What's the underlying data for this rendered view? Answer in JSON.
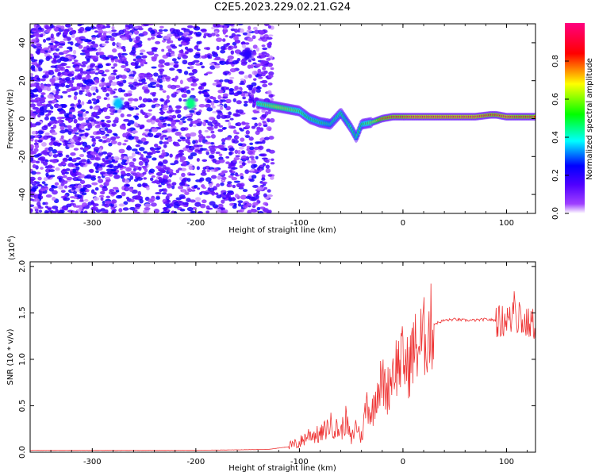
{
  "title": "C2E5.2023.229.02.21.G24",
  "chart_data": [
    {
      "type": "heatmap",
      "xlabel": "Height of straight line (km)",
      "ylabel": "Frequency (Hz)",
      "xlim": [
        -360,
        128
      ],
      "ylim": [
        -50,
        50
      ],
      "xticks": [
        -300,
        -200,
        -100,
        0,
        100
      ],
      "xtick_labels": [
        "-300",
        "-200",
        "-100",
        "0",
        "100"
      ],
      "yticks": [
        -40,
        -20,
        0,
        20,
        40
      ],
      "ytick_labels": [
        "-40",
        "-20",
        "0",
        "20",
        "40"
      ],
      "colorbar": {
        "label": "Normalized spectral amplitude",
        "range": [
          0,
          1
        ],
        "ticks": [
          0.0,
          0.2,
          0.4,
          0.6,
          0.8
        ],
        "tick_labels": [
          "0.0",
          "0.2",
          "0.4",
          "0.6",
          "0.8"
        ],
        "colors": [
          "#ffffff",
          "#7f00ff",
          "#0000ff",
          "#00ffff",
          "#00ff00",
          "#ffff00",
          "#ff0000",
          "#ff0080"
        ]
      },
      "ridge": {
        "x": [
          -140,
          -130,
          -120,
          -110,
          -100,
          -90,
          -80,
          -70,
          -60,
          -55,
          -50,
          -45,
          -40,
          -30,
          -20,
          -10,
          0,
          10,
          30,
          50,
          70,
          85,
          90,
          100,
          110,
          120,
          128
        ],
        "y": [
          8,
          7,
          6,
          5,
          4,
          0,
          -2,
          -3,
          3,
          -1,
          -5,
          -10,
          -3,
          -2,
          0,
          1,
          1,
          1,
          1,
          1,
          1,
          2,
          2,
          1,
          1,
          1,
          1
        ],
        "amp": [
          0.55,
          0.6,
          0.65,
          0.6,
          0.55,
          0.5,
          0.5,
          0.45,
          0.5,
          0.45,
          0.5,
          0.45,
          0.5,
          0.6,
          0.8,
          0.85,
          0.85,
          0.9,
          0.9,
          0.9,
          0.9,
          0.85,
          0.85,
          0.9,
          0.85,
          0.85,
          0.85
        ]
      },
      "hotspots": [
        {
          "x": -275,
          "y": 8,
          "amp": 0.35
        },
        {
          "x": -205,
          "y": 8,
          "amp": 0.45
        },
        {
          "x": -150,
          "y": 34,
          "amp": 0.2
        }
      ]
    },
    {
      "type": "line",
      "xlabel": "Height of straight line (km)",
      "ylabel": "SNR (10 * v/v)",
      "scale_label": "(x10",
      "scale_exp": "4",
      "scale_close": ")",
      "xlim": [
        -360,
        128
      ],
      "ylim": [
        0,
        2.05
      ],
      "xticks": [
        -300,
        -200,
        -100,
        0,
        100
      ],
      "xtick_labels": [
        "-300",
        "-200",
        "-100",
        "0",
        "100"
      ],
      "yticks": [
        0.0,
        0.5,
        1.0,
        1.5,
        2.0
      ],
      "ytick_labels": [
        "0.0",
        "0.5",
        "1.0",
        "1.5",
        "2.0"
      ],
      "series": [
        {
          "color": "#ee3333",
          "x": [
            -360,
            -300,
            -200,
            -130,
            -110,
            -100,
            -90,
            -80,
            -70,
            -60,
            -55,
            -50,
            -45,
            -40,
            -35,
            -30,
            -25,
            -20,
            -15,
            -10,
            -5,
            0,
            5,
            10,
            15,
            20,
            25,
            30,
            40,
            50,
            60,
            70,
            80,
            90,
            95,
            100,
            105,
            108,
            110,
            112,
            115,
            120,
            128
          ],
          "y": [
            0.02,
            0.02,
            0.02,
            0.03,
            0.06,
            0.1,
            0.2,
            0.18,
            0.3,
            0.22,
            0.35,
            0.12,
            0.3,
            0.15,
            0.55,
            0.4,
            0.7,
            0.75,
            0.65,
            0.9,
            0.95,
            1.0,
            0.9,
            1.1,
            1.15,
            1.22,
            1.3,
            1.38,
            1.42,
            1.43,
            1.42,
            1.42,
            1.43,
            1.42,
            1.4,
            1.45,
            1.4,
            1.8,
            1.35,
            1.55,
            1.4,
            1.38,
            1.38
          ]
        }
      ]
    }
  ]
}
